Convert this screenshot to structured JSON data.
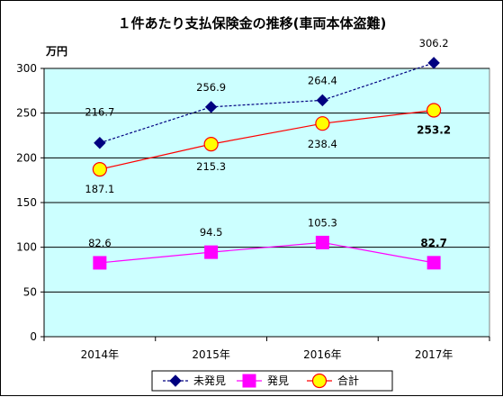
{
  "chart_data": {
    "type": "line",
    "title": "１件あたり支払保険金の推移(車両本体盗難)",
    "ylabel": "万円",
    "xlabel": "",
    "categories": [
      "2014年",
      "2015年",
      "2016年",
      "2017年"
    ],
    "ylim": [
      0,
      300
    ],
    "yticks": [
      0,
      50,
      100,
      150,
      200,
      250,
      300
    ],
    "grid": true,
    "legend_position": "bottom",
    "series": [
      {
        "name": "未発見",
        "values": [
          216.7,
          256.9,
          264.4,
          306.2
        ],
        "labels": [
          "216.7",
          "256.9",
          "264.4",
          "306.2"
        ],
        "color": "#000080",
        "marker": "diamond",
        "dashed": true
      },
      {
        "name": "発見",
        "values": [
          82.6,
          94.5,
          105.3,
          82.7
        ],
        "labels": [
          "82.6",
          "94.5",
          "105.3",
          "82.7"
        ],
        "color": "#FF00FF",
        "marker": "square",
        "dashed": false
      },
      {
        "name": "合計",
        "values": [
          187.1,
          215.3,
          238.4,
          253.2
        ],
        "labels": [
          "187.1",
          "215.3",
          "238.4",
          "253.2"
        ],
        "color": "#FF0000",
        "marker": "circle",
        "marker_fill": "#FFFF00",
        "dashed": false
      }
    ],
    "plot_background": "#CCFFFF"
  }
}
